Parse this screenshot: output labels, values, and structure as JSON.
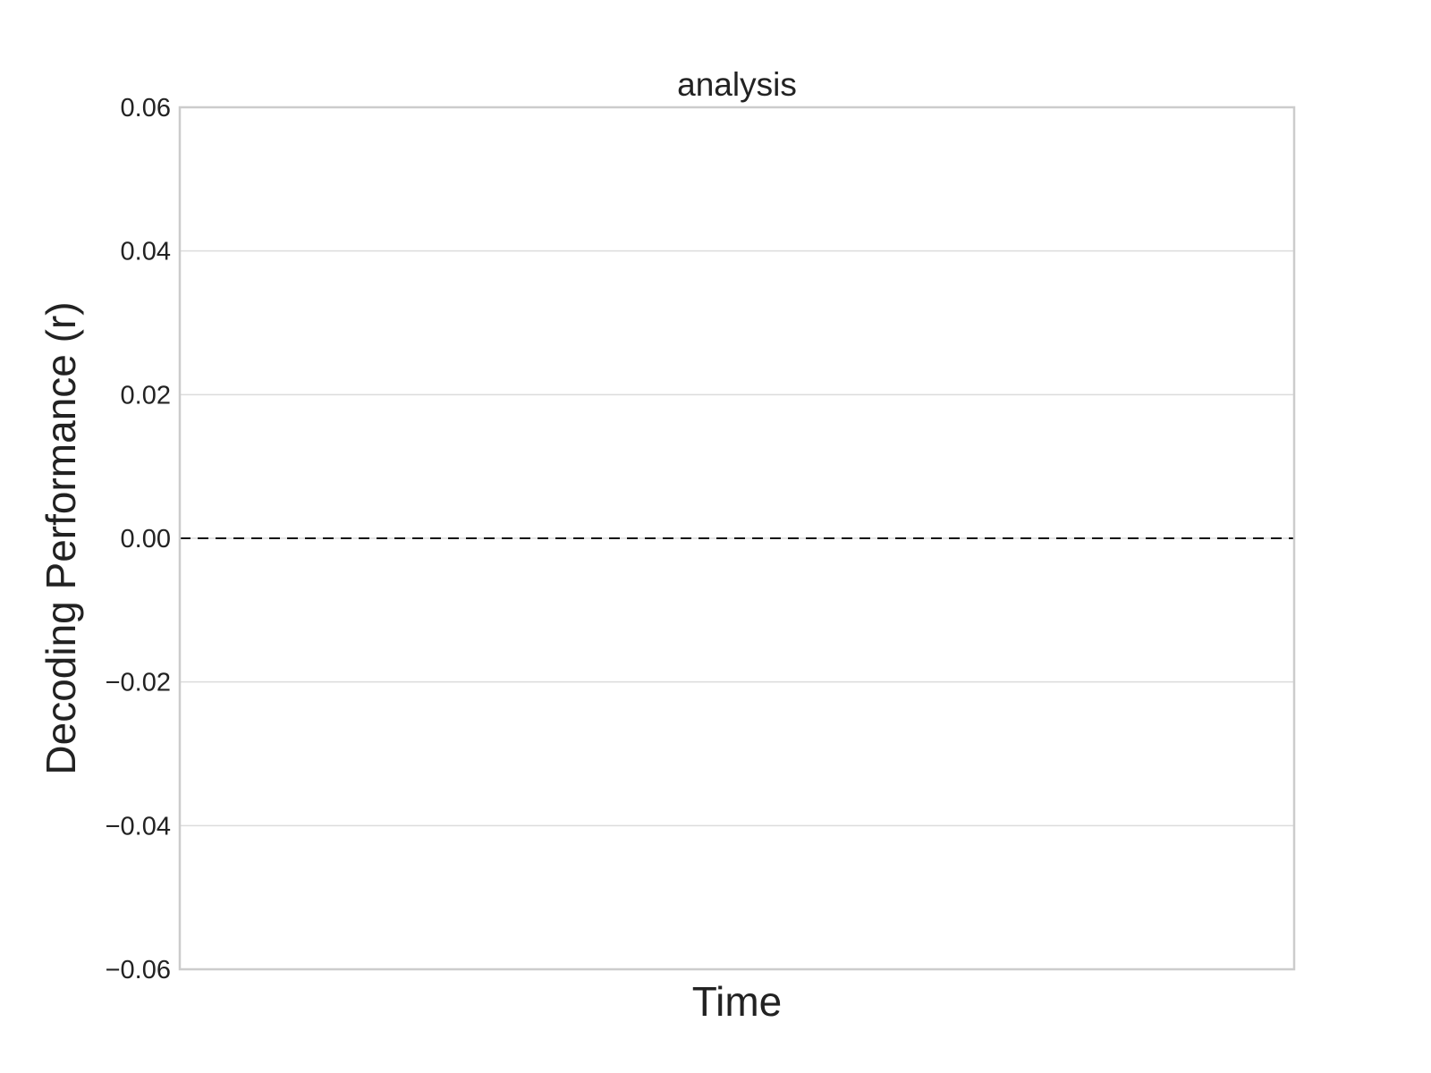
{
  "chart_data": {
    "type": "line",
    "title": "analysis",
    "xlabel": "Time",
    "ylabel": "Decoding Performance (r)",
    "ylim": [
      -0.06,
      0.06
    ],
    "yticks": [
      -0.06,
      -0.04,
      -0.02,
      0.0,
      0.02,
      0.04,
      0.06
    ],
    "ytick_labels": [
      "−0.06",
      "−0.04",
      "−0.02",
      "0.00",
      "0.02",
      "0.04",
      "0.06"
    ],
    "xticks": [],
    "grid": true,
    "reference_line": {
      "y": 0.0,
      "style": "dashed"
    },
    "series": []
  },
  "colors": {
    "grid": "#dcdcdc",
    "frame": "#cccccc",
    "text": "#222222",
    "reference_line": "#111111"
  }
}
